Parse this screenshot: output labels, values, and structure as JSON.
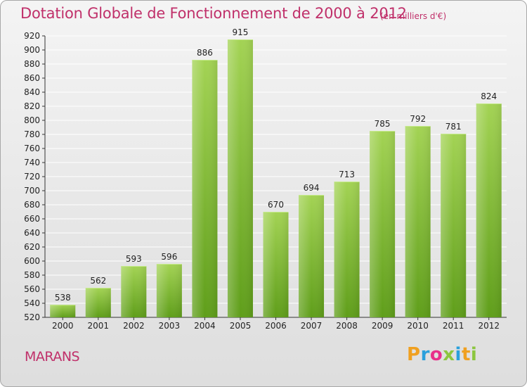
{
  "title": "Dotation Globale de Fonctionnement de 2000 à 2012",
  "subtitle": "(en milliers d'€)",
  "commune": "MARANS",
  "brand": {
    "letters": [
      "P",
      "r",
      "o",
      "x",
      "i",
      "t",
      "i"
    ],
    "colors": [
      "#f0a020",
      "#2aa0dc",
      "#e8308a",
      "#8cc63f",
      "#2aa0dc",
      "#f0a020",
      "#8cc63f"
    ]
  },
  "colors": {
    "bar_top": "#a3d354",
    "bar_bottom": "#5f9e1a",
    "title": "#c0306a"
  },
  "chart_data": {
    "type": "bar",
    "categories": [
      "2000",
      "2001",
      "2002",
      "2003",
      "2004",
      "2005",
      "2006",
      "2007",
      "2008",
      "2009",
      "2010",
      "2011",
      "2012"
    ],
    "values": [
      538,
      562,
      593,
      596,
      886,
      915,
      670,
      694,
      713,
      785,
      792,
      781,
      824
    ],
    "data_labels": [
      "538",
      "562",
      "593",
      "596",
      "886",
      "915",
      "670",
      "694",
      "713",
      "785",
      "792",
      "781",
      "824"
    ],
    "ylim": [
      520,
      920
    ],
    "yticks": [
      520,
      540,
      560,
      580,
      600,
      620,
      640,
      660,
      680,
      700,
      720,
      740,
      760,
      780,
      800,
      820,
      840,
      860,
      880,
      900,
      920
    ],
    "grid": true,
    "legend": "none"
  }
}
